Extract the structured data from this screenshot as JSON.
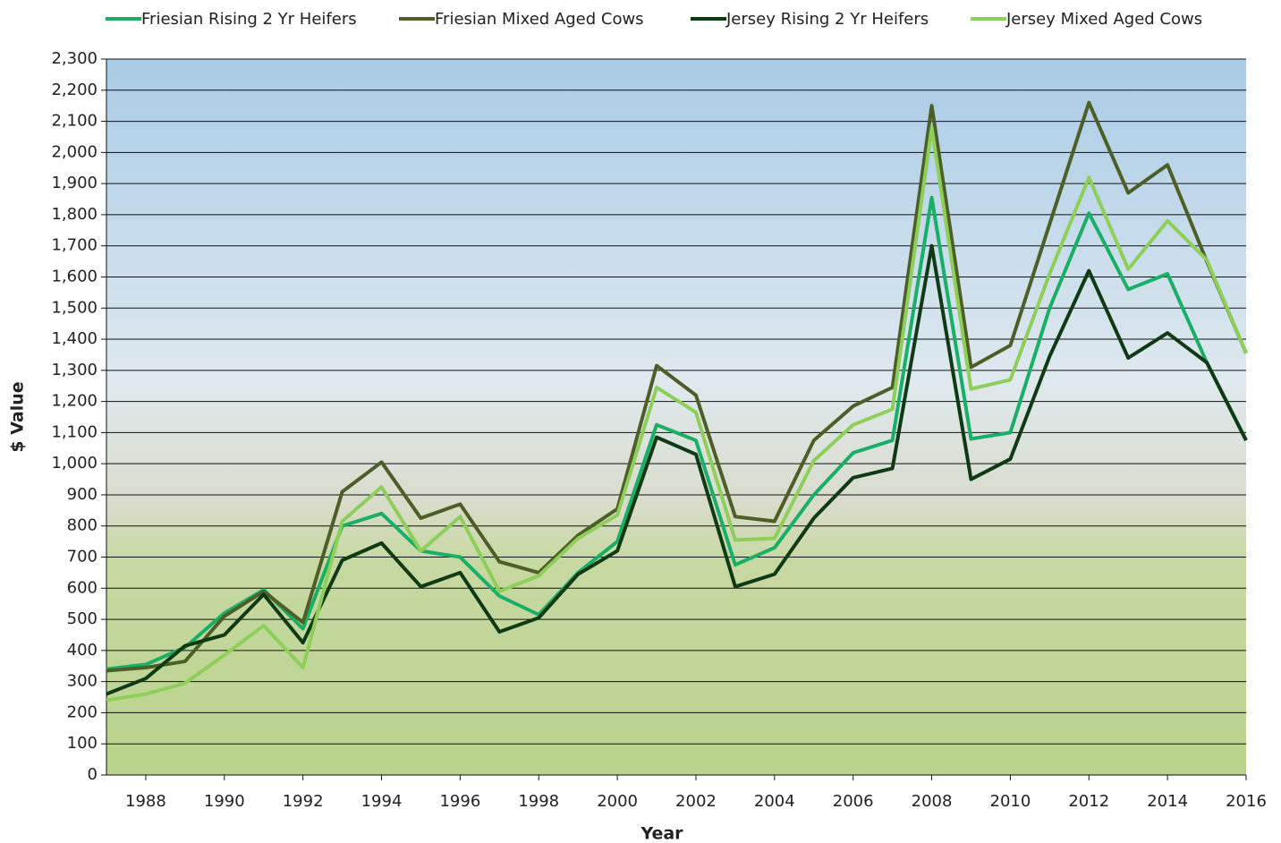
{
  "chart_data": {
    "type": "line",
    "x_label": "Year",
    "y_label": "$ Value",
    "x": [
      1987,
      1988,
      1989,
      1990,
      1991,
      1992,
      1993,
      1994,
      1995,
      1996,
      1997,
      1998,
      1999,
      2000,
      2001,
      2002,
      2003,
      2004,
      2005,
      2006,
      2007,
      2008,
      2009,
      2010,
      2011,
      2012,
      2013,
      2014,
      2015,
      2016
    ],
    "xlim": [
      1987,
      2016
    ],
    "xticks": [
      1988,
      1990,
      1992,
      1994,
      1996,
      1998,
      2000,
      2002,
      2004,
      2006,
      2008,
      2010,
      2012,
      2014,
      2016
    ],
    "ylim": [
      0,
      2300
    ],
    "yticks": [
      0,
      100,
      200,
      300,
      400,
      500,
      600,
      700,
      800,
      900,
      {
        "value": 1000,
        "label": "1,000"
      },
      {
        "value": 1100,
        "label": "1,100"
      },
      {
        "value": 1200,
        "label": "1,200"
      },
      {
        "value": 1300,
        "label": "1,300"
      },
      {
        "value": 1400,
        "label": "1,400"
      },
      {
        "value": 1500,
        "label": "1,500"
      },
      {
        "value": 1600,
        "label": "1,600"
      },
      {
        "value": 1700,
        "label": "1,700"
      },
      {
        "value": 1800,
        "label": "1,800"
      },
      {
        "value": 1900,
        "label": "1,900"
      },
      {
        "value": 2000,
        "label": "2,000"
      },
      {
        "value": 2100,
        "label": "2,100"
      },
      {
        "value": 2200,
        "label": "2,200"
      },
      {
        "value": 2300,
        "label": "2,300"
      }
    ],
    "grid": true,
    "series": [
      {
        "name": "Friesian Rising 2 Yr Heifers",
        "color": "#1aaf66",
        "values": [
          340,
          355,
          410,
          520,
          595,
          470,
          800,
          840,
          720,
          700,
          575,
          515,
          650,
          750,
          1125,
          1075,
          675,
          730,
          900,
          1035,
          1075,
          1855,
          1080,
          1100,
          1500,
          1805,
          1560,
          1610,
          1325,
          1075
        ]
      },
      {
        "name": "Friesian Mixed Aged Cows",
        "color": "#4d5e28",
        "values": [
          335,
          345,
          365,
          510,
          590,
          490,
          910,
          1005,
          825,
          870,
          685,
          650,
          770,
          855,
          1315,
          1220,
          830,
          815,
          1075,
          1185,
          1245,
          2150,
          1310,
          1380,
          1770,
          2160,
          1870,
          1960,
          1650,
          1355
        ]
      },
      {
        "name": "Jersey Rising 2 Yr Heifers",
        "color": "#0e3a14",
        "values": [
          260,
          310,
          415,
          450,
          580,
          425,
          690,
          745,
          605,
          650,
          460,
          505,
          645,
          720,
          1085,
          1030,
          605,
          645,
          825,
          955,
          985,
          1700,
          950,
          1015,
          1345,
          1620,
          1340,
          1420,
          1325,
          1075
        ]
      },
      {
        "name": "Jersey Mixed Aged Cows",
        "color": "#8dcf58",
        "values": [
          240,
          260,
          295,
          385,
          480,
          345,
          815,
          925,
          720,
          830,
          590,
          640,
          760,
          835,
          1245,
          1165,
          755,
          760,
          1010,
          1125,
          1175,
          2080,
          1240,
          1270,
          1610,
          1920,
          1625,
          1780,
          1655,
          1355
        ]
      }
    ]
  }
}
